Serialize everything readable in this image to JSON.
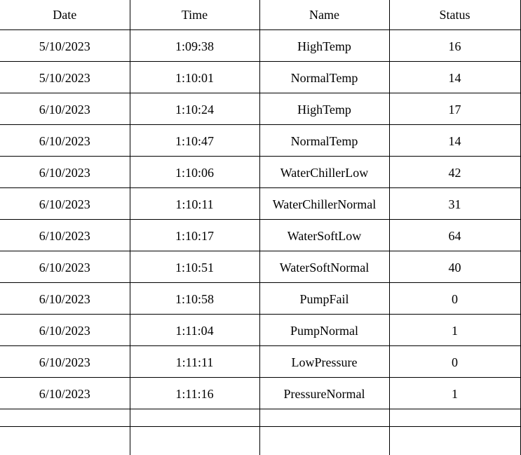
{
  "table": {
    "headers": {
      "date": "Date",
      "time": "Time",
      "name": "Name",
      "status": "Status"
    },
    "rows": [
      {
        "date": "5/10/2023",
        "time": "1:09:38",
        "name": "HighTemp",
        "status": "16"
      },
      {
        "date": "5/10/2023",
        "time": "1:10:01",
        "name": "NormalTemp",
        "status": "14"
      },
      {
        "date": "6/10/2023",
        "time": "1:10:24",
        "name": "HighTemp",
        "status": "17"
      },
      {
        "date": "6/10/2023",
        "time": "1:10:47",
        "name": "NormalTemp",
        "status": "14"
      },
      {
        "date": "6/10/2023",
        "time": "1:10:06",
        "name": "WaterChillerLow",
        "status": "42"
      },
      {
        "date": "6/10/2023",
        "time": "1:10:11",
        "name": "WaterChillerNormal",
        "status": "31"
      },
      {
        "date": "6/10/2023",
        "time": "1:10:17",
        "name": "WaterSoftLow",
        "status": "64"
      },
      {
        "date": "6/10/2023",
        "time": "1:10:51",
        "name": "WaterSoftNormal",
        "status": "40"
      },
      {
        "date": "6/10/2023",
        "time": "1:10:58",
        "name": "PumpFail",
        "status": "0"
      },
      {
        "date": "6/10/2023",
        "time": "1:11:04",
        "name": "PumpNormal",
        "status": "1"
      },
      {
        "date": "6/10/2023",
        "time": "1:11:11",
        "name": "LowPressure",
        "status": "0"
      },
      {
        "date": "6/10/2023",
        "time": "1:11:16",
        "name": "PressureNormal",
        "status": "1"
      }
    ]
  }
}
